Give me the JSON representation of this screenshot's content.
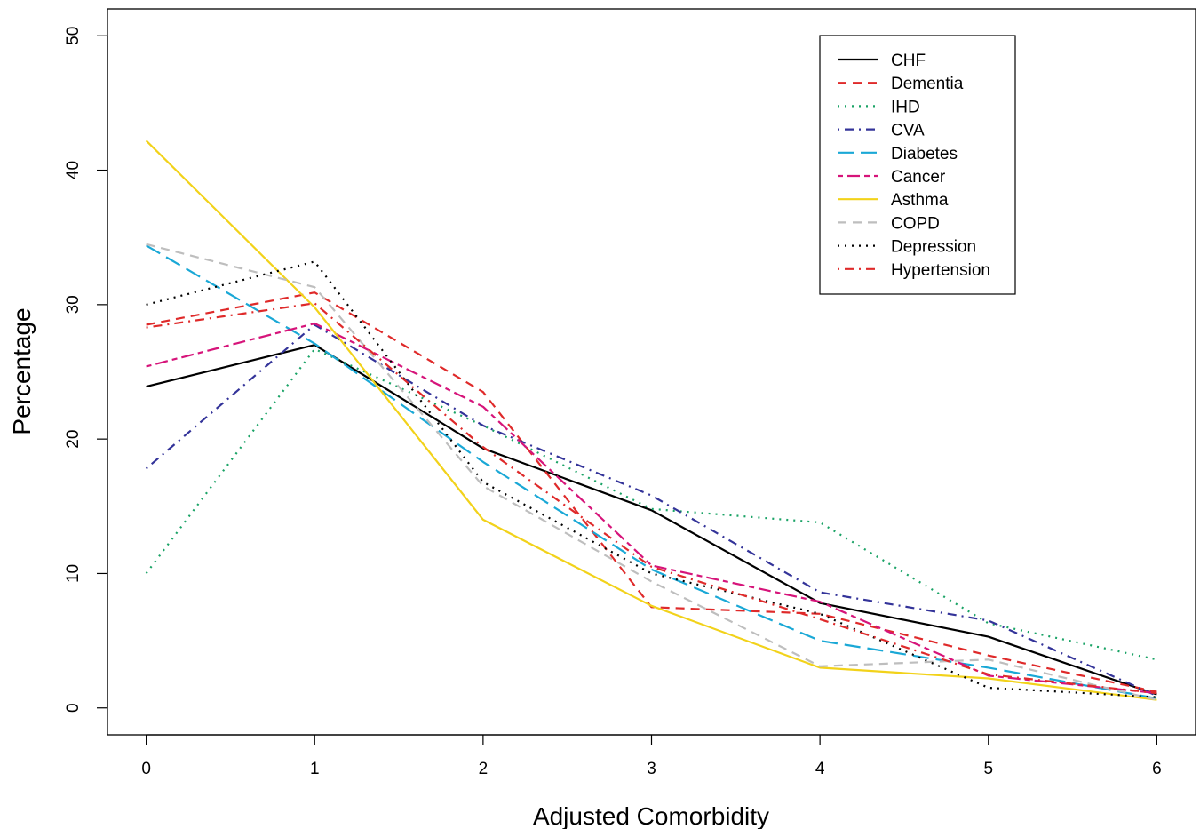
{
  "chart_data": {
    "type": "line",
    "title": "",
    "xlabel": "Adjusted Comorbidity",
    "ylabel": "Percentage",
    "x": [
      0,
      1,
      2,
      3,
      4,
      5,
      6
    ],
    "x_ticks": [
      "0",
      "1",
      "2",
      "3",
      "4",
      "5",
      "6"
    ],
    "y_ticks": [
      "0",
      "10",
      "20",
      "30",
      "40",
      "50"
    ],
    "xlim": [
      -0.23,
      6.23
    ],
    "ylim": [
      -2,
      52
    ],
    "grid": false,
    "legend_position": "top-right",
    "series": [
      {
        "name": "CHF",
        "color": "#000000",
        "dash": "solid",
        "values": [
          23.9,
          27.0,
          19.3,
          14.7,
          7.8,
          5.3,
          1.0
        ]
      },
      {
        "name": "Dementia",
        "color": "#DF2A2A",
        "dash": "dashed",
        "values": [
          28.5,
          30.9,
          23.5,
          7.5,
          7.0,
          3.9,
          1.2
        ]
      },
      {
        "name": "IHD",
        "color": "#1AA366",
        "dash": "dotted",
        "values": [
          10.0,
          26.7,
          21.0,
          14.8,
          13.8,
          6.3,
          3.6
        ]
      },
      {
        "name": "CVA",
        "color": "#333399",
        "dash": "dotdash",
        "values": [
          17.8,
          28.5,
          21.0,
          15.8,
          8.6,
          6.5,
          0.9
        ]
      },
      {
        "name": "Diabetes",
        "color": "#1AA8D6",
        "dash": "longdash",
        "values": [
          34.4,
          27.1,
          18.3,
          10.3,
          5.0,
          3.0,
          0.7
        ]
      },
      {
        "name": "Cancer",
        "color": "#D6147A",
        "dash": "twodash",
        "values": [
          25.4,
          28.6,
          22.4,
          10.6,
          7.9,
          2.4,
          1.1
        ]
      },
      {
        "name": "Asthma",
        "color": "#F2D21A",
        "dash": "solid",
        "values": [
          42.2,
          29.8,
          14.0,
          7.6,
          3.0,
          2.2,
          0.6
        ]
      },
      {
        "name": "COPD",
        "color": "#BEBEBE",
        "dash": "dashed",
        "values": [
          34.5,
          31.3,
          16.5,
          9.4,
          3.1,
          3.6,
          0.6
        ]
      },
      {
        "name": "Depression",
        "color": "#000000",
        "dash": "dotted",
        "values": [
          30.0,
          33.2,
          16.8,
          10.0,
          7.0,
          1.5,
          0.8
        ]
      },
      {
        "name": "Hypertension",
        "color": "#DF2A2A",
        "dash": "dotdash",
        "values": [
          28.3,
          30.1,
          19.4,
          10.5,
          6.6,
          2.5,
          1.1
        ]
      }
    ]
  }
}
